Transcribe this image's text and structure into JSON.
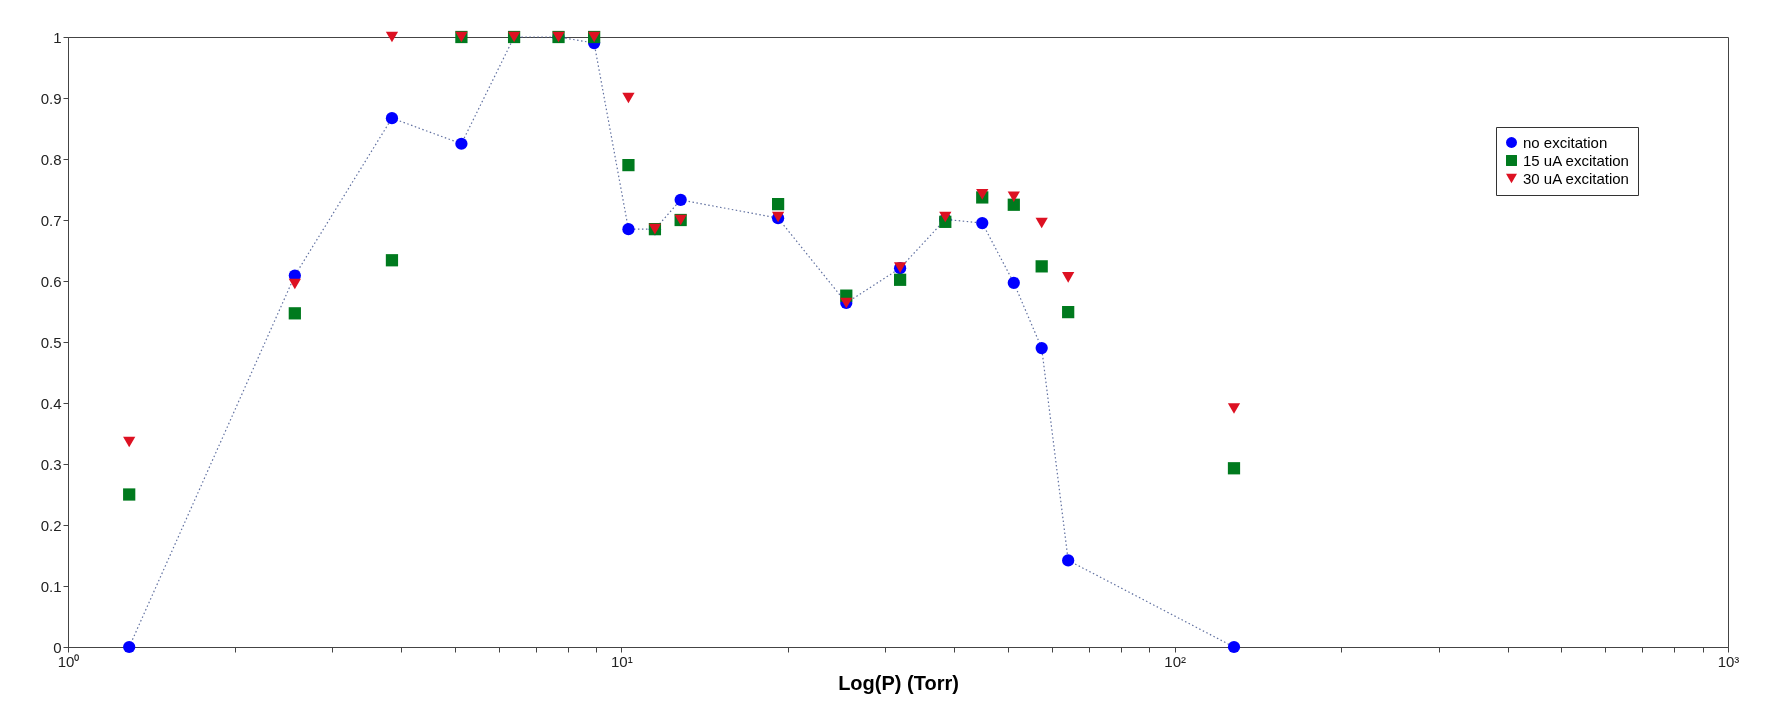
{
  "chart_data": {
    "type": "scatter",
    "xlabel": "Log(P) (Torr)",
    "log": "x",
    "grid": false,
    "legend": "top right",
    "xlim": [
      1,
      1000
    ],
    "ylim": [
      0,
      1
    ],
    "xticks": [
      {
        "value": 1,
        "label": "10⁰"
      },
      {
        "value": 2,
        "label": null
      },
      {
        "value": 3,
        "label": null
      },
      {
        "value": 4,
        "label": null
      },
      {
        "value": 5,
        "label": null
      },
      {
        "value": 6,
        "label": null
      },
      {
        "value": 7,
        "label": null
      },
      {
        "value": 8,
        "label": null
      },
      {
        "value": 9,
        "label": null
      },
      {
        "value": 10,
        "label": "10¹"
      },
      {
        "value": 20,
        "label": null
      },
      {
        "value": 30,
        "label": null
      },
      {
        "value": 40,
        "label": null
      },
      {
        "value": 50,
        "label": null
      },
      {
        "value": 60,
        "label": null
      },
      {
        "value": 70,
        "label": null
      },
      {
        "value": 80,
        "label": null
      },
      {
        "value": 90,
        "label": null
      },
      {
        "value": 100,
        "label": "10²"
      },
      {
        "value": 200,
        "label": null
      },
      {
        "value": 300,
        "label": null
      },
      {
        "value": 400,
        "label": null
      },
      {
        "value": 500,
        "label": null
      },
      {
        "value": 600,
        "label": null
      },
      {
        "value": 700,
        "label": null
      },
      {
        "value": 800,
        "label": null
      },
      {
        "value": 900,
        "label": null
      },
      {
        "value": 1000,
        "label": "10³"
      }
    ],
    "yticks": [
      0,
      0.1,
      0.2,
      0.3,
      0.4,
      0.5,
      0.6,
      0.7,
      0.8,
      0.9,
      1
    ],
    "x": [
      1.29,
      2.57,
      3.85,
      5.14,
      6.4,
      7.7,
      8.93,
      10.3,
      11.5,
      12.8,
      19.2,
      25.5,
      31.9,
      38.5,
      44.9,
      51.2,
      57.5,
      64.2,
      128
    ],
    "series": [
      {
        "name": "no excitation",
        "type": "line",
        "marker": "circle",
        "line_style": "dotted",
        "color": "#0000ff",
        "values": [
          0,
          0.609,
          0.867,
          0.825,
          1,
          1,
          0.99,
          0.685,
          0.685,
          0.733,
          0.703,
          0.564,
          0.621,
          0.701,
          0.695,
          0.597,
          0.49,
          0.142,
          0
        ]
      },
      {
        "name": "15 uA excitation",
        "marker": "square",
        "color": "#007a1e",
        "values": [
          0.25,
          0.547,
          0.634,
          1,
          1,
          1,
          1,
          0.79,
          0.685,
          0.7,
          0.726,
          0.576,
          0.602,
          0.697,
          0.737,
          0.725,
          0.624,
          0.549,
          0.293
        ]
      },
      {
        "name": "30 uA excitation",
        "marker": "triangle",
        "color": "#dd1122",
        "values": [
          0.336,
          0.595,
          1,
          1,
          1,
          1,
          1,
          0.9,
          0.685,
          0.7,
          0.705,
          0.564,
          0.622,
          0.705,
          0.742,
          0.738,
          0.695,
          0.606,
          0.391
        ]
      }
    ]
  }
}
